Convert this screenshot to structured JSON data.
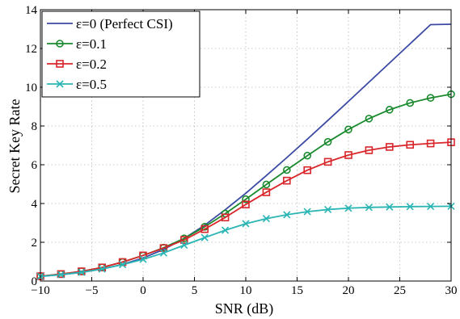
{
  "chart_data": {
    "type": "line",
    "title": "",
    "xlabel": "SNR (dB)",
    "ylabel": "Secret Key Rate",
    "xlim": [
      -10,
      30
    ],
    "ylim": [
      0,
      14
    ],
    "xticks": [
      -10,
      -5,
      0,
      5,
      10,
      15,
      20,
      25,
      30
    ],
    "yticks": [
      0,
      2,
      4,
      6,
      8,
      10,
      12,
      14
    ],
    "xtick_labels": [
      "−10",
      "−5",
      "0",
      "5",
      "10",
      "15",
      "20",
      "25",
      "30"
    ],
    "ytick_labels": [
      "0",
      "2",
      "4",
      "6",
      "8",
      "10",
      "12",
      "14"
    ],
    "grid": true,
    "legend_position": "top-left",
    "series": [
      {
        "name": "ε=0 (Perfect CSI)",
        "color": "#3b4aa3",
        "marker": "none",
        "x": [
          -10,
          -8,
          -6,
          -4,
          -2,
          0,
          2,
          4,
          6,
          8,
          10,
          12,
          14,
          16,
          18,
          20,
          22,
          24,
          26,
          28,
          30
        ],
        "y": [
          0.24,
          0.33,
          0.45,
          0.62,
          0.86,
          1.19,
          1.63,
          2.2,
          2.88,
          3.68,
          4.53,
          5.44,
          6.37,
          7.32,
          8.29,
          9.27,
          10.26,
          11.25,
          12.24,
          13.23,
          13.25
        ]
      },
      {
        "name": "ε=0.1",
        "color": "#1a8a2e",
        "marker": "circle",
        "x": [
          -10,
          -8,
          -6,
          -4,
          -2,
          0,
          2,
          4,
          6,
          8,
          10,
          12,
          14,
          16,
          18,
          20,
          22,
          24,
          26,
          28,
          30
        ],
        "y": [
          0.25,
          0.36,
          0.5,
          0.7,
          0.98,
          1.32,
          1.72,
          2.2,
          2.8,
          3.48,
          4.22,
          4.98,
          5.73,
          6.47,
          7.18,
          7.82,
          8.38,
          8.84,
          9.19,
          9.45,
          9.64
        ]
      },
      {
        "name": "ε=0.2",
        "color": "#d9262b",
        "marker": "square",
        "x": [
          -10,
          -8,
          -6,
          -4,
          -2,
          0,
          2,
          4,
          6,
          8,
          10,
          12,
          14,
          16,
          18,
          20,
          22,
          24,
          26,
          28,
          30
        ],
        "y": [
          0.25,
          0.36,
          0.5,
          0.7,
          0.98,
          1.32,
          1.7,
          2.12,
          2.68,
          3.28,
          3.95,
          4.58,
          5.18,
          5.72,
          6.15,
          6.5,
          6.75,
          6.92,
          7.03,
          7.1,
          7.16
        ]
      },
      {
        "name": "ε=0.5",
        "color": "#2ab5b5",
        "marker": "x",
        "x": [
          -10,
          -8,
          -6,
          -4,
          -2,
          0,
          2,
          4,
          6,
          8,
          10,
          12,
          14,
          16,
          18,
          20,
          22,
          24,
          26,
          28,
          30
        ],
        "y": [
          0.24,
          0.33,
          0.45,
          0.62,
          0.85,
          1.12,
          1.45,
          1.85,
          2.24,
          2.62,
          2.96,
          3.22,
          3.42,
          3.58,
          3.69,
          3.76,
          3.8,
          3.82,
          3.84,
          3.85,
          3.86
        ]
      }
    ]
  }
}
